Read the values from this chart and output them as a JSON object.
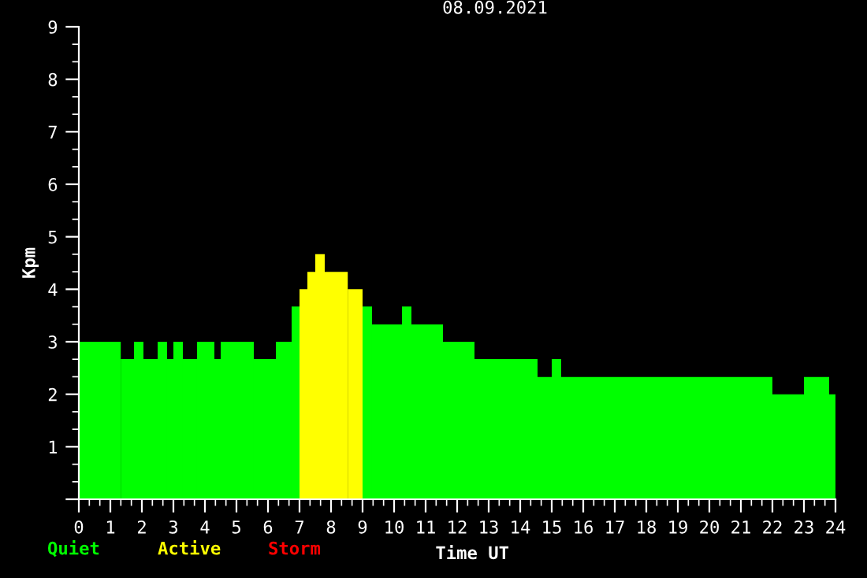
{
  "chart_data": {
    "type": "histogram",
    "title": "08.09.2021",
    "xlabel": "Time UT",
    "ylabel": "Kpm",
    "bins": [
      0,
      1.33,
      1.75,
      2.05,
      2.5,
      2.8,
      3.0,
      3.3,
      3.75,
      4.3,
      4.5,
      5.55,
      6.25,
      6.75,
      7.0,
      7.25,
      7.5,
      7.8,
      8.53,
      9.0,
      9.3,
      10.25,
      10.55,
      11.55,
      12.55,
      14.55,
      15.0,
      15.3,
      22.0,
      23.0,
      23.8,
      24
    ],
    "series": [
      {
        "name": "Quiet",
        "color": "#00ff00",
        "values": [
          3,
          2.67,
          3,
          2.67,
          3,
          2.67,
          3,
          2.67,
          3,
          2.67,
          3,
          2.67,
          3,
          3.67,
          null,
          null,
          null,
          null,
          null,
          3.67,
          3.33,
          3.67,
          3.33,
          3,
          2.67,
          2.33,
          2.67,
          2.33,
          2,
          2.33,
          2
        ]
      },
      {
        "name": "Active",
        "color": "#ffff00",
        "values": [
          null,
          null,
          null,
          null,
          null,
          null,
          null,
          null,
          null,
          null,
          null,
          null,
          null,
          null,
          4,
          4.33,
          4.67,
          4.33,
          4,
          null,
          null,
          null,
          null,
          null,
          null,
          null,
          null,
          null,
          null,
          null,
          null
        ]
      }
    ],
    "annotations": [
      "Storm"
    ],
    "xlim": [
      0,
      24
    ],
    "xticks": [
      0,
      1,
      2,
      3,
      4,
      5,
      6,
      7,
      8,
      9,
      10,
      11,
      12,
      13,
      14,
      15,
      16,
      17,
      18,
      19,
      20,
      21,
      22,
      23,
      24
    ],
    "ylim": [
      0,
      9
    ],
    "yticks": [
      {
        "value": 0,
        "label": null
      },
      1,
      2,
      3,
      4,
      5,
      6,
      7,
      8,
      9
    ],
    "grid": false,
    "legend": "bottom left"
  }
}
